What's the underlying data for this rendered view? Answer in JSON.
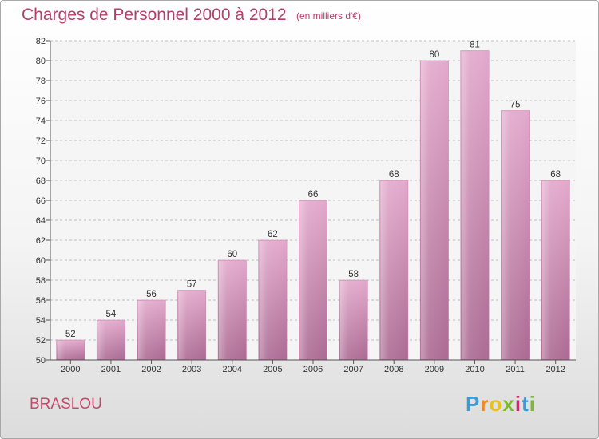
{
  "title": "Charges de Personnel 2000 à 2012",
  "subtitle": "(en milliers d'€)",
  "place": "BRASLOU",
  "brand": {
    "letters": [
      "P",
      "r",
      "o",
      "x",
      "i",
      "t",
      "i"
    ],
    "colors": [
      "#3b9bd6",
      "#f08a1f",
      "#e8c21c",
      "#7dbb2e",
      "#d9256e",
      "#3b9bd6",
      "#7dbb2e"
    ]
  },
  "chart_data": {
    "type": "bar",
    "title": "Charges de Personnel 2000 à 2012",
    "subtitle": "(en milliers d'€)",
    "categories": [
      "2000",
      "2001",
      "2002",
      "2003",
      "2004",
      "2005",
      "2006",
      "2007",
      "2008",
      "2009",
      "2010",
      "2011",
      "2012"
    ],
    "values": [
      52,
      54,
      56,
      57,
      60,
      62,
      66,
      58,
      68,
      80,
      81,
      75,
      68
    ],
    "ylim": [
      50,
      82
    ],
    "yticks": [
      50,
      52,
      54,
      56,
      58,
      60,
      62,
      64,
      66,
      68,
      70,
      72,
      74,
      76,
      78,
      80,
      82
    ],
    "grid": true,
    "bar_color": "#d591ba"
  }
}
